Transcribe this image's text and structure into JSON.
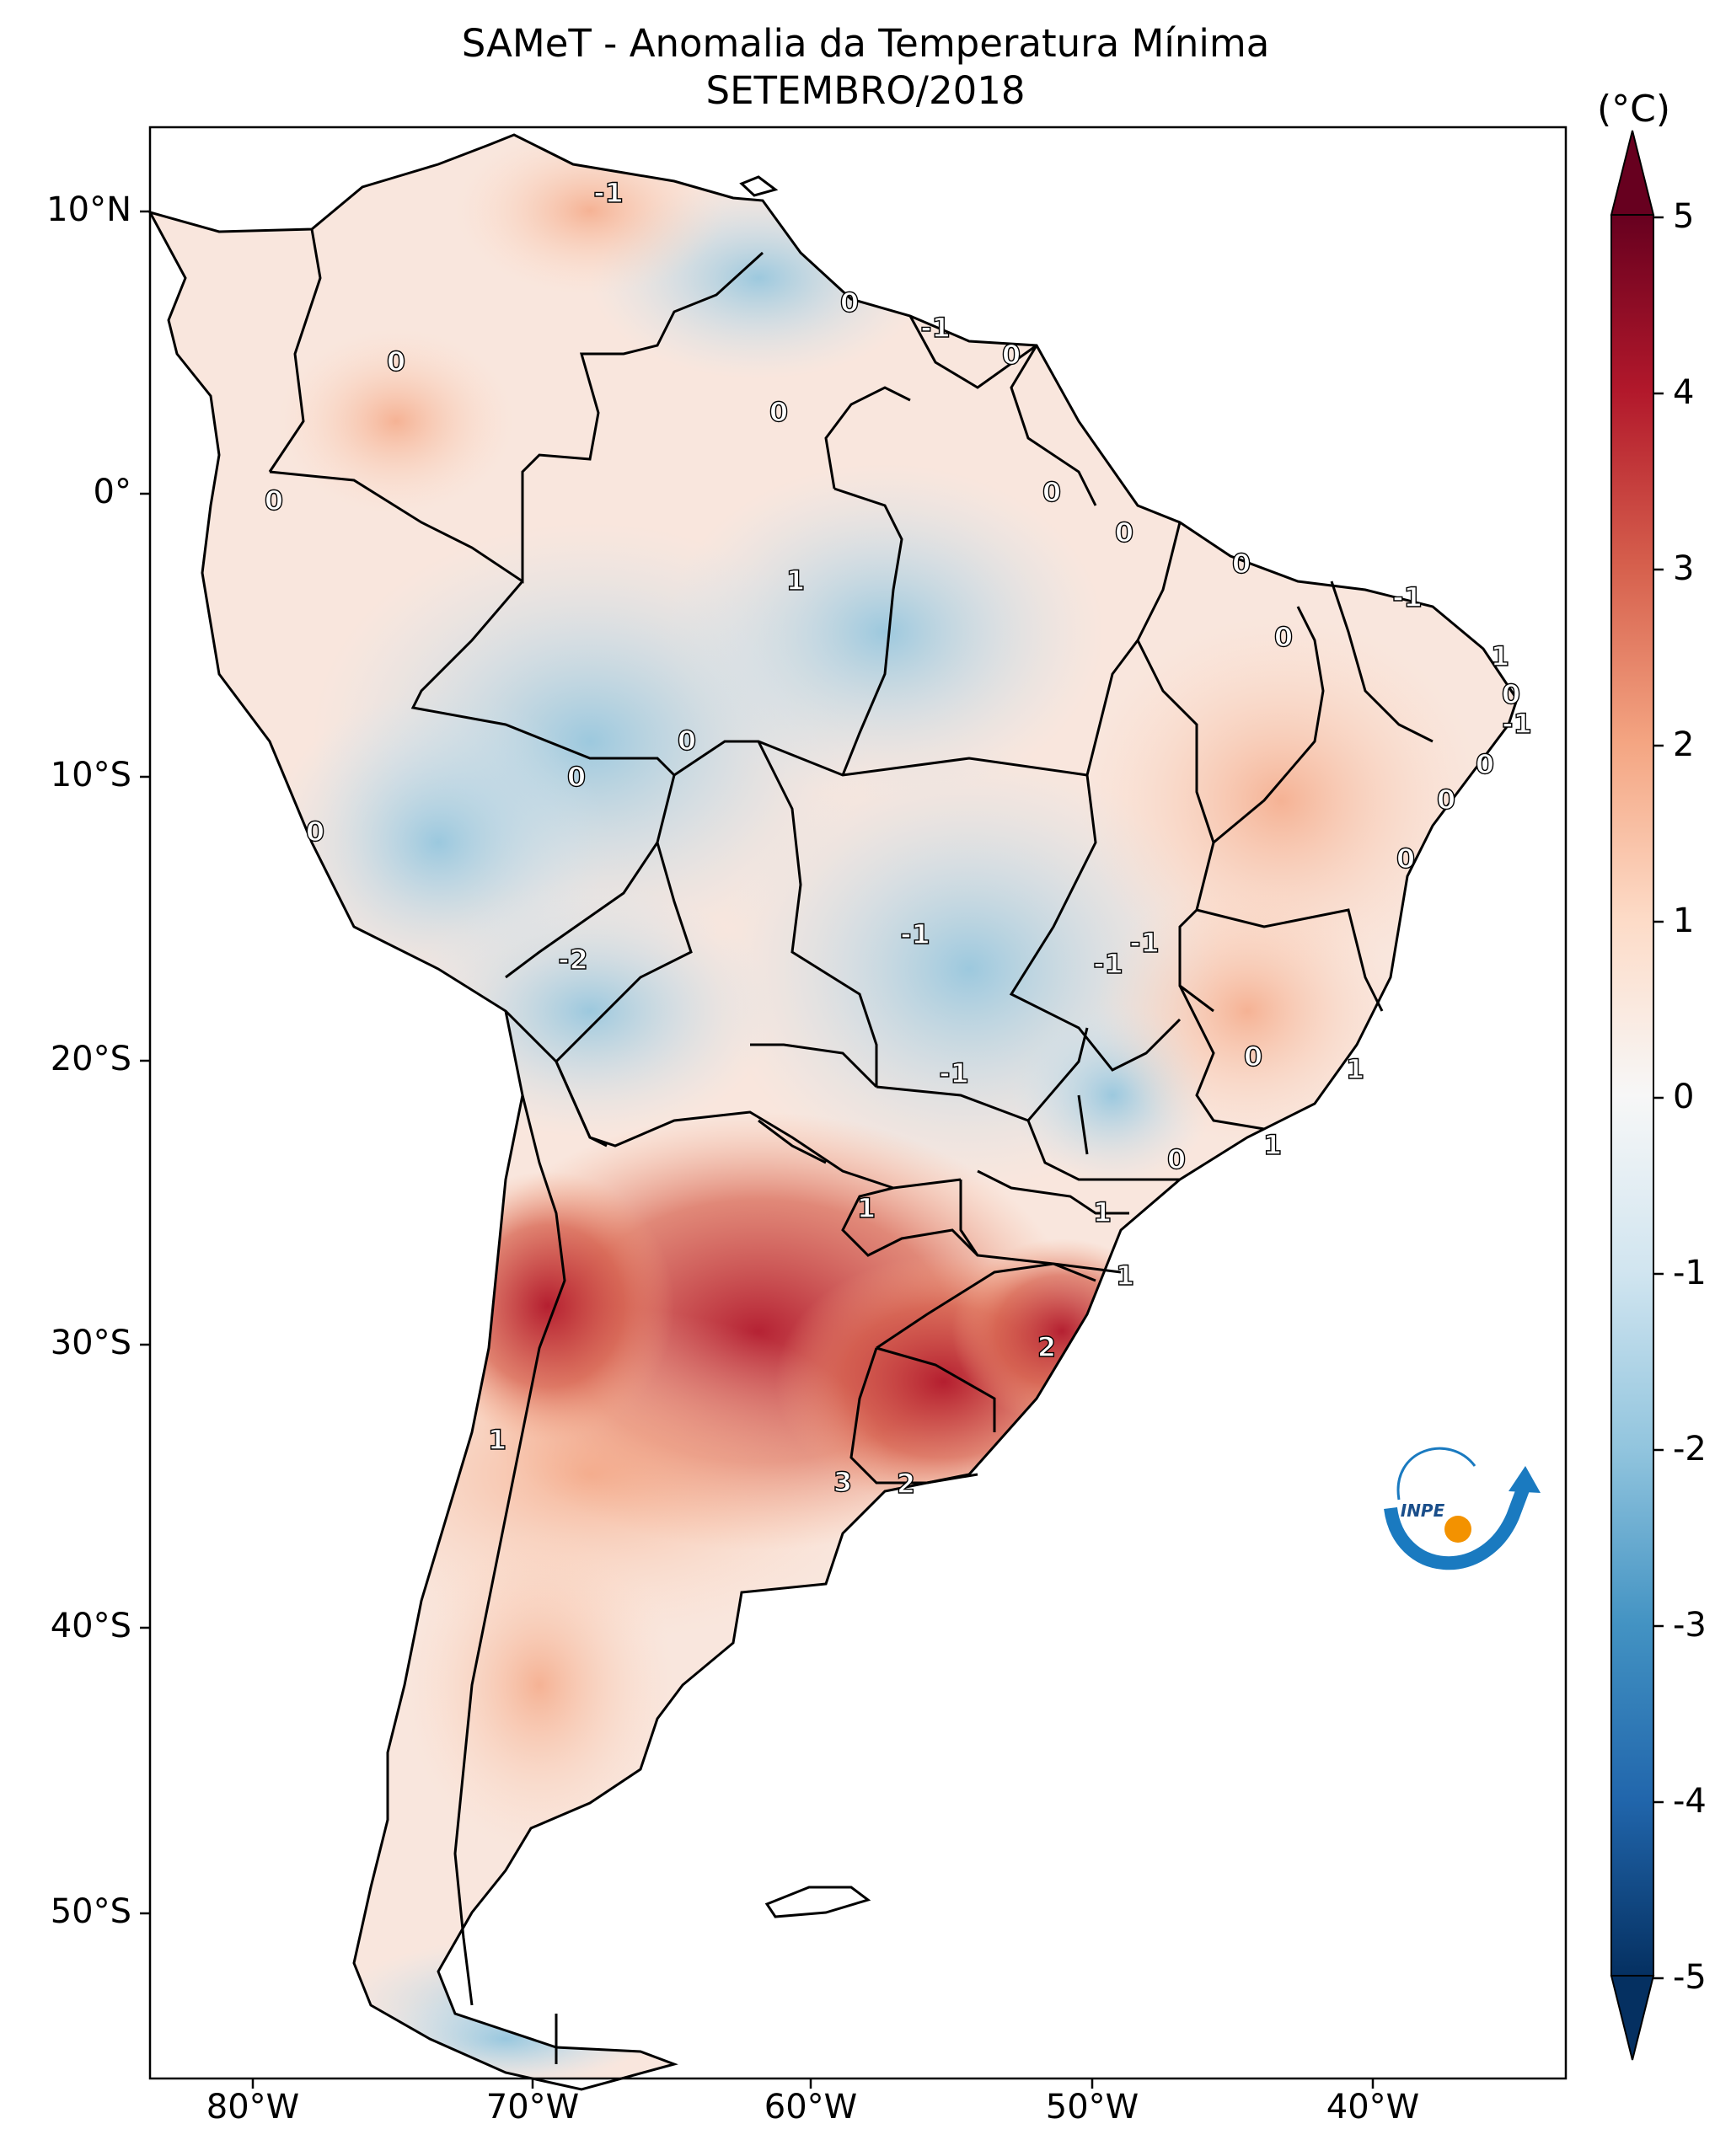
{
  "title": "SAMeT - Anomalia da Temperatura Mínima",
  "subtitle": "SETEMBRO/2018",
  "colorbar": {
    "unit": "(°C)",
    "ticks": [
      "5",
      "4",
      "3",
      "2",
      "1",
      "0",
      "-1",
      "-2",
      "-3",
      "-4",
      "-5"
    ],
    "range": [
      -5,
      5
    ]
  },
  "axes": {
    "x_labels": [
      "80°W",
      "70°W",
      "60°W",
      "50°W",
      "40°W"
    ],
    "y_labels": [
      "10°N",
      "0°",
      "10°S",
      "20°S",
      "30°S",
      "40°S",
      "50°S"
    ]
  },
  "contour_labels": [
    {
      "text": "-1"
    },
    {
      "text": "0"
    },
    {
      "text": "-1"
    },
    {
      "text": "0"
    },
    {
      "text": "0"
    },
    {
      "text": "0"
    },
    {
      "text": "0"
    },
    {
      "text": "0"
    },
    {
      "text": "1"
    },
    {
      "text": "0"
    },
    {
      "text": "0"
    },
    {
      "text": "-1"
    },
    {
      "text": "0"
    },
    {
      "text": "1"
    },
    {
      "text": "0"
    },
    {
      "text": "-1"
    },
    {
      "text": "0"
    },
    {
      "text": "0"
    },
    {
      "text": "0"
    },
    {
      "text": "0"
    },
    {
      "text": "0"
    },
    {
      "text": "0"
    },
    {
      "text": "-1"
    },
    {
      "text": "-1"
    },
    {
      "text": "-1"
    },
    {
      "text": "-2"
    },
    {
      "text": "-1"
    },
    {
      "text": "0"
    },
    {
      "text": "1"
    },
    {
      "text": "0"
    },
    {
      "text": "1"
    },
    {
      "text": "1"
    },
    {
      "text": "1"
    },
    {
      "text": "1"
    },
    {
      "text": "2"
    },
    {
      "text": "1"
    },
    {
      "text": "3"
    },
    {
      "text": "2"
    }
  ],
  "logo": {
    "text": "INPE"
  },
  "colors": {
    "warm": "#b2182b",
    "cool": "#2166ac",
    "neutral": "#f7f7f7"
  }
}
